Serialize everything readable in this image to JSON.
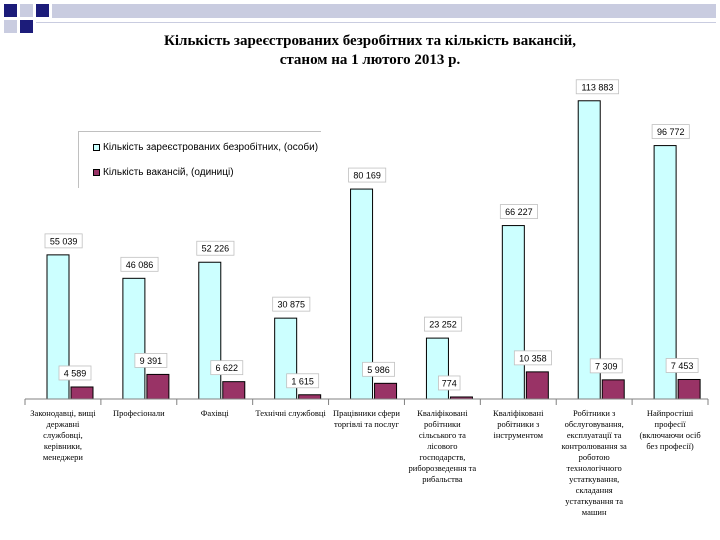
{
  "colors": {
    "unemployed": "#ccffff",
    "vacancies": "#993366",
    "deco_dark": "#1c1c7a",
    "deco_light": "#c9cce0"
  },
  "chart_data": {
    "type": "bar",
    "title": "Кількість зареєстрованих безробітних та кількість вакансій, станом на 1 лютого 2013 р.",
    "title_lines": [
      "Кількість зареєстрованих безробітних та кількість вакансій,",
      "станом на 1 лютого 2013 р."
    ],
    "categories": [
      "Законодавці, вищі державні службовці, керівники, менеджери",
      "Професіонали",
      "Фахівці",
      "Технічні службовці",
      "Працівники сфери торгівлі та послуг",
      "Кваліфіковані робітники сільського та лісового господарств, риборозведення та рибальства",
      "Кваліфіковані робітники з інструментом",
      "Робітники з обслуговування, експлуатації та контролювання за роботою технологічного устаткування, складання устаткування та машин",
      "Найпростіші професії (включаючи осіб без професії)"
    ],
    "category_lines": [
      [
        "Законодавці, вищі",
        "державні",
        "службовці,",
        "керівники,",
        "менеджери"
      ],
      [
        "Професіонали"
      ],
      [
        "Фахівці"
      ],
      [
        "Технічні службовці"
      ],
      [
        "Працівники сфери",
        "торгівлі та послуг"
      ],
      [
        "Кваліфіковані",
        "робітники",
        "сільського та",
        "лісового",
        "господарств,",
        "риборозведення та",
        "рибальства"
      ],
      [
        "Кваліфіковані",
        "робітники з",
        "інструментом"
      ],
      [
        "Робітники з",
        "обслуговування,",
        "експлуатації та",
        "контролювання за",
        "роботою",
        "технологічного",
        "устаткування,",
        "складання",
        "устаткування та",
        "машин"
      ],
      [
        "Найпростіші",
        "професії",
        "(включаючи осіб",
        "без професії)"
      ]
    ],
    "series": [
      {
        "name": "Кількість зареєстрованих безробітних, (особи)",
        "values": [
          55039,
          46086,
          52226,
          30875,
          80169,
          23252,
          66227,
          113883,
          96772
        ],
        "labels": [
          "55 039",
          "46 086",
          "52 226",
          "30 875",
          "80 169",
          "23 252",
          "66 227",
          "113 883",
          "96 772"
        ]
      },
      {
        "name": "Кількість вакансій, (одиниці)",
        "values": [
          4589,
          9391,
          6622,
          1615,
          5986,
          774,
          10358,
          7309,
          7453
        ],
        "labels": [
          "4 589",
          "9 391",
          "6 622",
          "1 615",
          "5 986",
          "774",
          "10 358",
          "7 309",
          "7 453"
        ]
      }
    ],
    "ylim": [
      0,
      118000
    ],
    "legend_position": "top-left",
    "grid": false
  }
}
